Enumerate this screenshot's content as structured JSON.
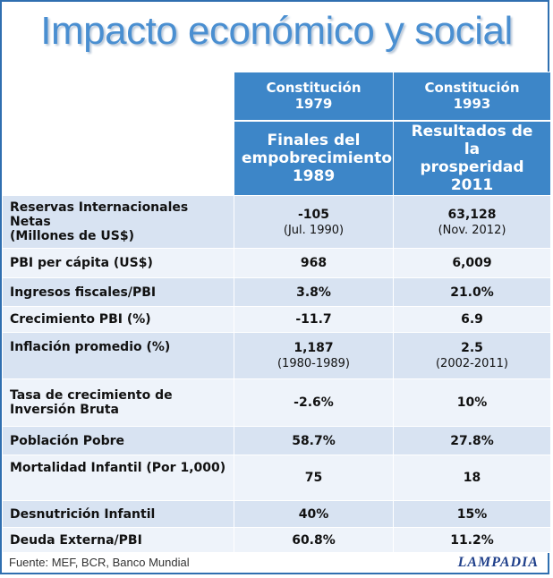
{
  "title": "Impacto económico y social",
  "header": {
    "col1_line1": "Constitución",
    "col1_line2": "1979",
    "col2_line1": "Constitución",
    "col2_line2": "1993",
    "col1_sub_line1": "Finales del",
    "col1_sub_line2": "empobrecimiento",
    "col1_sub_line3": "1989",
    "col2_sub_line1": "Resultados de la",
    "col2_sub_line2": "prosperidad",
    "col2_sub_line3": "2011"
  },
  "rows": [
    {
      "label_a": "Reservas Internacionales Netas",
      "label_b": "(Millones de US$)",
      "v1": "-105",
      "v1_note": "(Jul. 1990)",
      "v2": "63,128",
      "v2_note": "(Nov. 2012)"
    },
    {
      "label_a": "PBI per cápita (US$)",
      "label_b": "",
      "v1": "968",
      "v1_note": "",
      "v2": "6,009",
      "v2_note": ""
    },
    {
      "label_a": "Ingresos fiscales/PBI",
      "label_b": "",
      "v1": "3.8%",
      "v1_note": "",
      "v2": "21.0%",
      "v2_note": ""
    },
    {
      "label_a": "Crecimiento PBI (%)",
      "label_b": "",
      "v1": "-11.7",
      "v1_note": "",
      "v2": "6.9",
      "v2_note": ""
    },
    {
      "label_a": "Inflación promedio (%)",
      "label_b": "",
      "v1": "1,187",
      "v1_note": "(1980-1989)",
      "v2": "2.5",
      "v2_note": "(2002-2011)"
    },
    {
      "label_a": "Tasa de crecimiento de",
      "label_b": "Inversión Bruta",
      "v1": "-2.6%",
      "v1_note": "",
      "v2": "10%",
      "v2_note": ""
    },
    {
      "label_a": "Población Pobre",
      "label_b": "",
      "v1": "58.7%",
      "v1_note": "",
      "v2": "27.8%",
      "v2_note": ""
    },
    {
      "label_a": "Mortalidad Infantil (Por 1,000)",
      "label_b": "",
      "v1": "75",
      "v1_note": "",
      "v2": "18",
      "v2_note": ""
    },
    {
      "label_a": "Desnutrición Infantil",
      "label_b": "",
      "v1": "40%",
      "v1_note": "",
      "v2": "15%",
      "v2_note": ""
    },
    {
      "label_a": "Deuda Externa/PBI",
      "label_b": "",
      "v1": "60.8%",
      "v1_note": "",
      "v2": "11.2%",
      "v2_note": ""
    }
  ],
  "footer": "Fuente: MEF, BCR, Banco Mundial",
  "logo": "LAMPADIA",
  "colors": {
    "header": "#3d86c8",
    "title": "#4a8fd1",
    "row_dark": "#d8e3f2",
    "row_light": "#eef3fa"
  }
}
